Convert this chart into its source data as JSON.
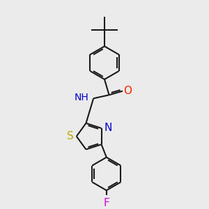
{
  "background_color": "#ebebeb",
  "bond_color": "#1a1a1a",
  "bond_width": 1.5,
  "atom_colors": {
    "N": "#0000cc",
    "O": "#ff2200",
    "S": "#bbaa00",
    "F": "#dd00dd",
    "H": "#888888",
    "C": "#1a1a1a"
  },
  "font_size": 10,
  "fig_width": 3.0,
  "fig_height": 3.0,
  "xlim": [
    -2.5,
    2.5
  ],
  "ylim": [
    -4.2,
    4.2
  ]
}
